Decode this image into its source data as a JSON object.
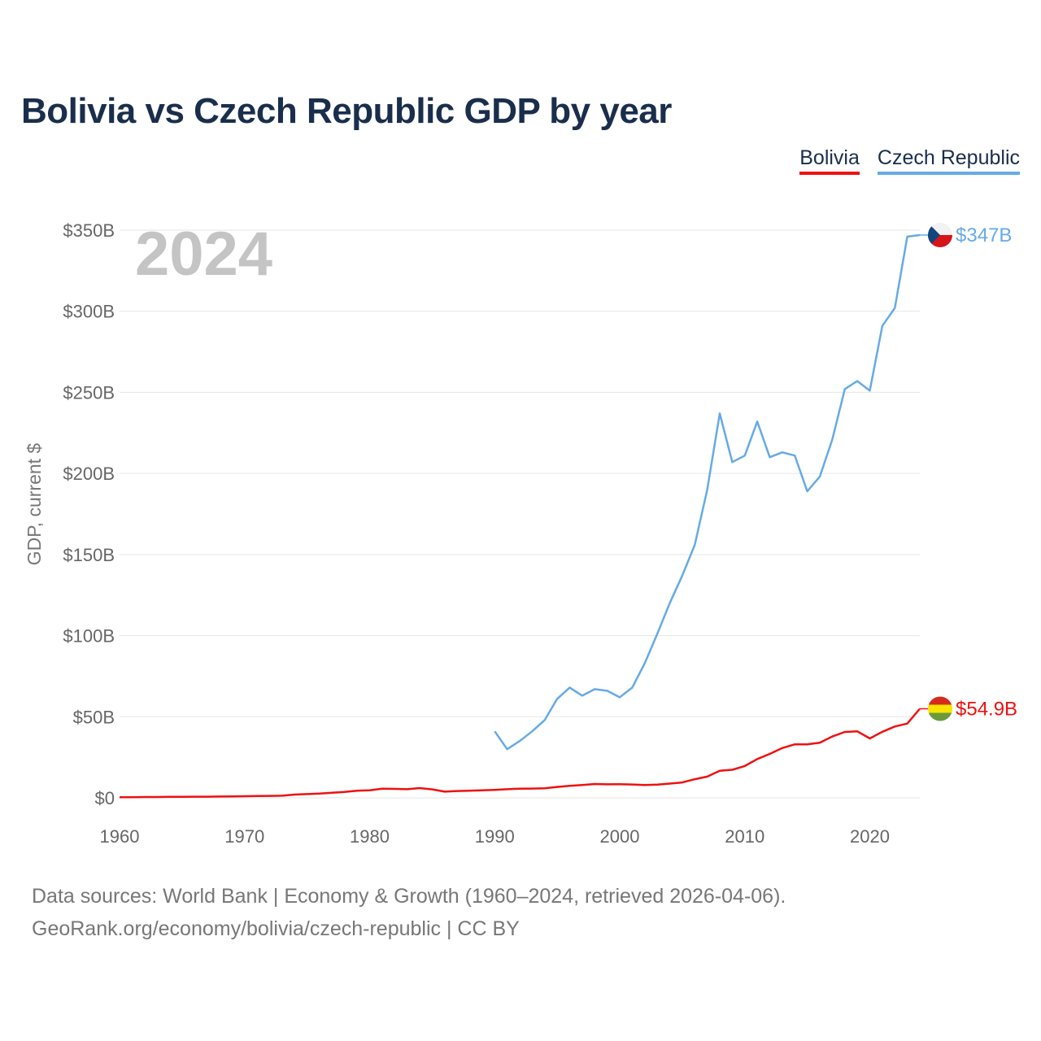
{
  "title": "Bolivia vs Czech Republic GDP by year",
  "legend": [
    "Bolivia",
    "Czech Republic"
  ],
  "source_line1": "Data sources: World Bank | Economy & Growth (1960–2024, retrieved 2026-04-06).",
  "source_line2": "GeoRank.org/economy/bolivia/czech-republic | CC BY",
  "chart_data": {
    "type": "line",
    "title": "Bolivia vs Czech Republic GDP by year",
    "year_label": "2024",
    "xlabel": "",
    "ylabel": "GDP, current $",
    "xlim": [
      1960,
      2024
    ],
    "ylim": [
      0,
      350
    ],
    "x_ticks": [
      "1960",
      "1970",
      "1980",
      "1990",
      "2000",
      "2010",
      "2020"
    ],
    "y_ticks": [
      "$0",
      "$50B",
      "$100B",
      "$150B",
      "$200B",
      "$250B",
      "$300B",
      "$350B"
    ],
    "y_unit": "billions USD",
    "series": [
      {
        "name": "Bolivia",
        "color": "#ee1111",
        "end_label": "$54.9B",
        "x": [
          1960,
          1961,
          1962,
          1963,
          1964,
          1965,
          1966,
          1967,
          1968,
          1969,
          1970,
          1971,
          1972,
          1973,
          1974,
          1975,
          1976,
          1977,
          1978,
          1979,
          1980,
          1981,
          1982,
          1983,
          1984,
          1985,
          1986,
          1987,
          1988,
          1989,
          1990,
          1991,
          1992,
          1993,
          1994,
          1995,
          1996,
          1997,
          1998,
          1999,
          2000,
          2001,
          2002,
          2003,
          2004,
          2005,
          2006,
          2007,
          2008,
          2009,
          2010,
          2011,
          2012,
          2013,
          2014,
          2015,
          2016,
          2017,
          2018,
          2019,
          2020,
          2021,
          2022,
          2023,
          2024
        ],
        "values": [
          0.4,
          0.4,
          0.5,
          0.5,
          0.6,
          0.6,
          0.7,
          0.7,
          0.8,
          0.9,
          1.0,
          1.1,
          1.2,
          1.3,
          2.0,
          2.3,
          2.6,
          3.1,
          3.6,
          4.4,
          4.6,
          5.6,
          5.5,
          5.3,
          6.0,
          5.2,
          3.8,
          4.2,
          4.4,
          4.6,
          4.9,
          5.3,
          5.6,
          5.7,
          5.9,
          6.7,
          7.4,
          7.9,
          8.5,
          8.3,
          8.4,
          8.2,
          7.9,
          8.1,
          8.8,
          9.5,
          11.5,
          13.1,
          16.7,
          17.3,
          19.6,
          23.9,
          27.1,
          30.7,
          33.0,
          33.0,
          34.0,
          37.8,
          40.6,
          41.0,
          36.6,
          40.7,
          44.0,
          45.8,
          54.9
        ]
      },
      {
        "name": "Czech Republic",
        "color": "#66aae6",
        "end_label": "$347B",
        "x": [
          1990,
          1991,
          1992,
          1993,
          1994,
          1995,
          1996,
          1997,
          1998,
          1999,
          2000,
          2001,
          2002,
          2003,
          2004,
          2005,
          2006,
          2007,
          2008,
          2009,
          2010,
          2011,
          2012,
          2013,
          2014,
          2015,
          2016,
          2017,
          2018,
          2019,
          2020,
          2021,
          2022,
          2023,
          2024
        ],
        "values": [
          41,
          30,
          35,
          41,
          48,
          61,
          68,
          63,
          67,
          66,
          62,
          68,
          83,
          101,
          120,
          137,
          156,
          190,
          237,
          207,
          211,
          232,
          210,
          213,
          211,
          189,
          198,
          221,
          252,
          257,
          251,
          291,
          302,
          346,
          347
        ]
      }
    ]
  }
}
